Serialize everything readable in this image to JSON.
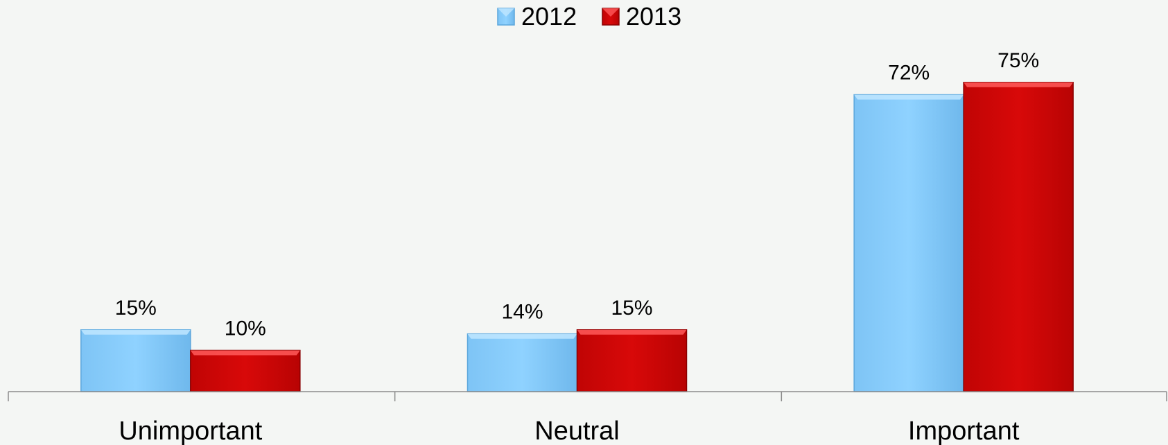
{
  "chart_data": {
    "type": "bar",
    "categories": [
      "Unimportant",
      "Neutral",
      "Important"
    ],
    "series": [
      {
        "name": "2012",
        "values": [
          15,
          14,
          72
        ],
        "labels": [
          "15%",
          "14%",
          "72%"
        ],
        "color": "#85cbfb"
      },
      {
        "name": "2013",
        "values": [
          10,
          15,
          75
        ],
        "labels": [
          "10%",
          "15%",
          "75%"
        ],
        "color": "#d10707"
      }
    ],
    "title": "",
    "xlabel": "",
    "ylabel": "",
    "ylim": [
      0,
      80
    ],
    "grid": false,
    "legend_position": "top-center",
    "value_unit": "%"
  }
}
